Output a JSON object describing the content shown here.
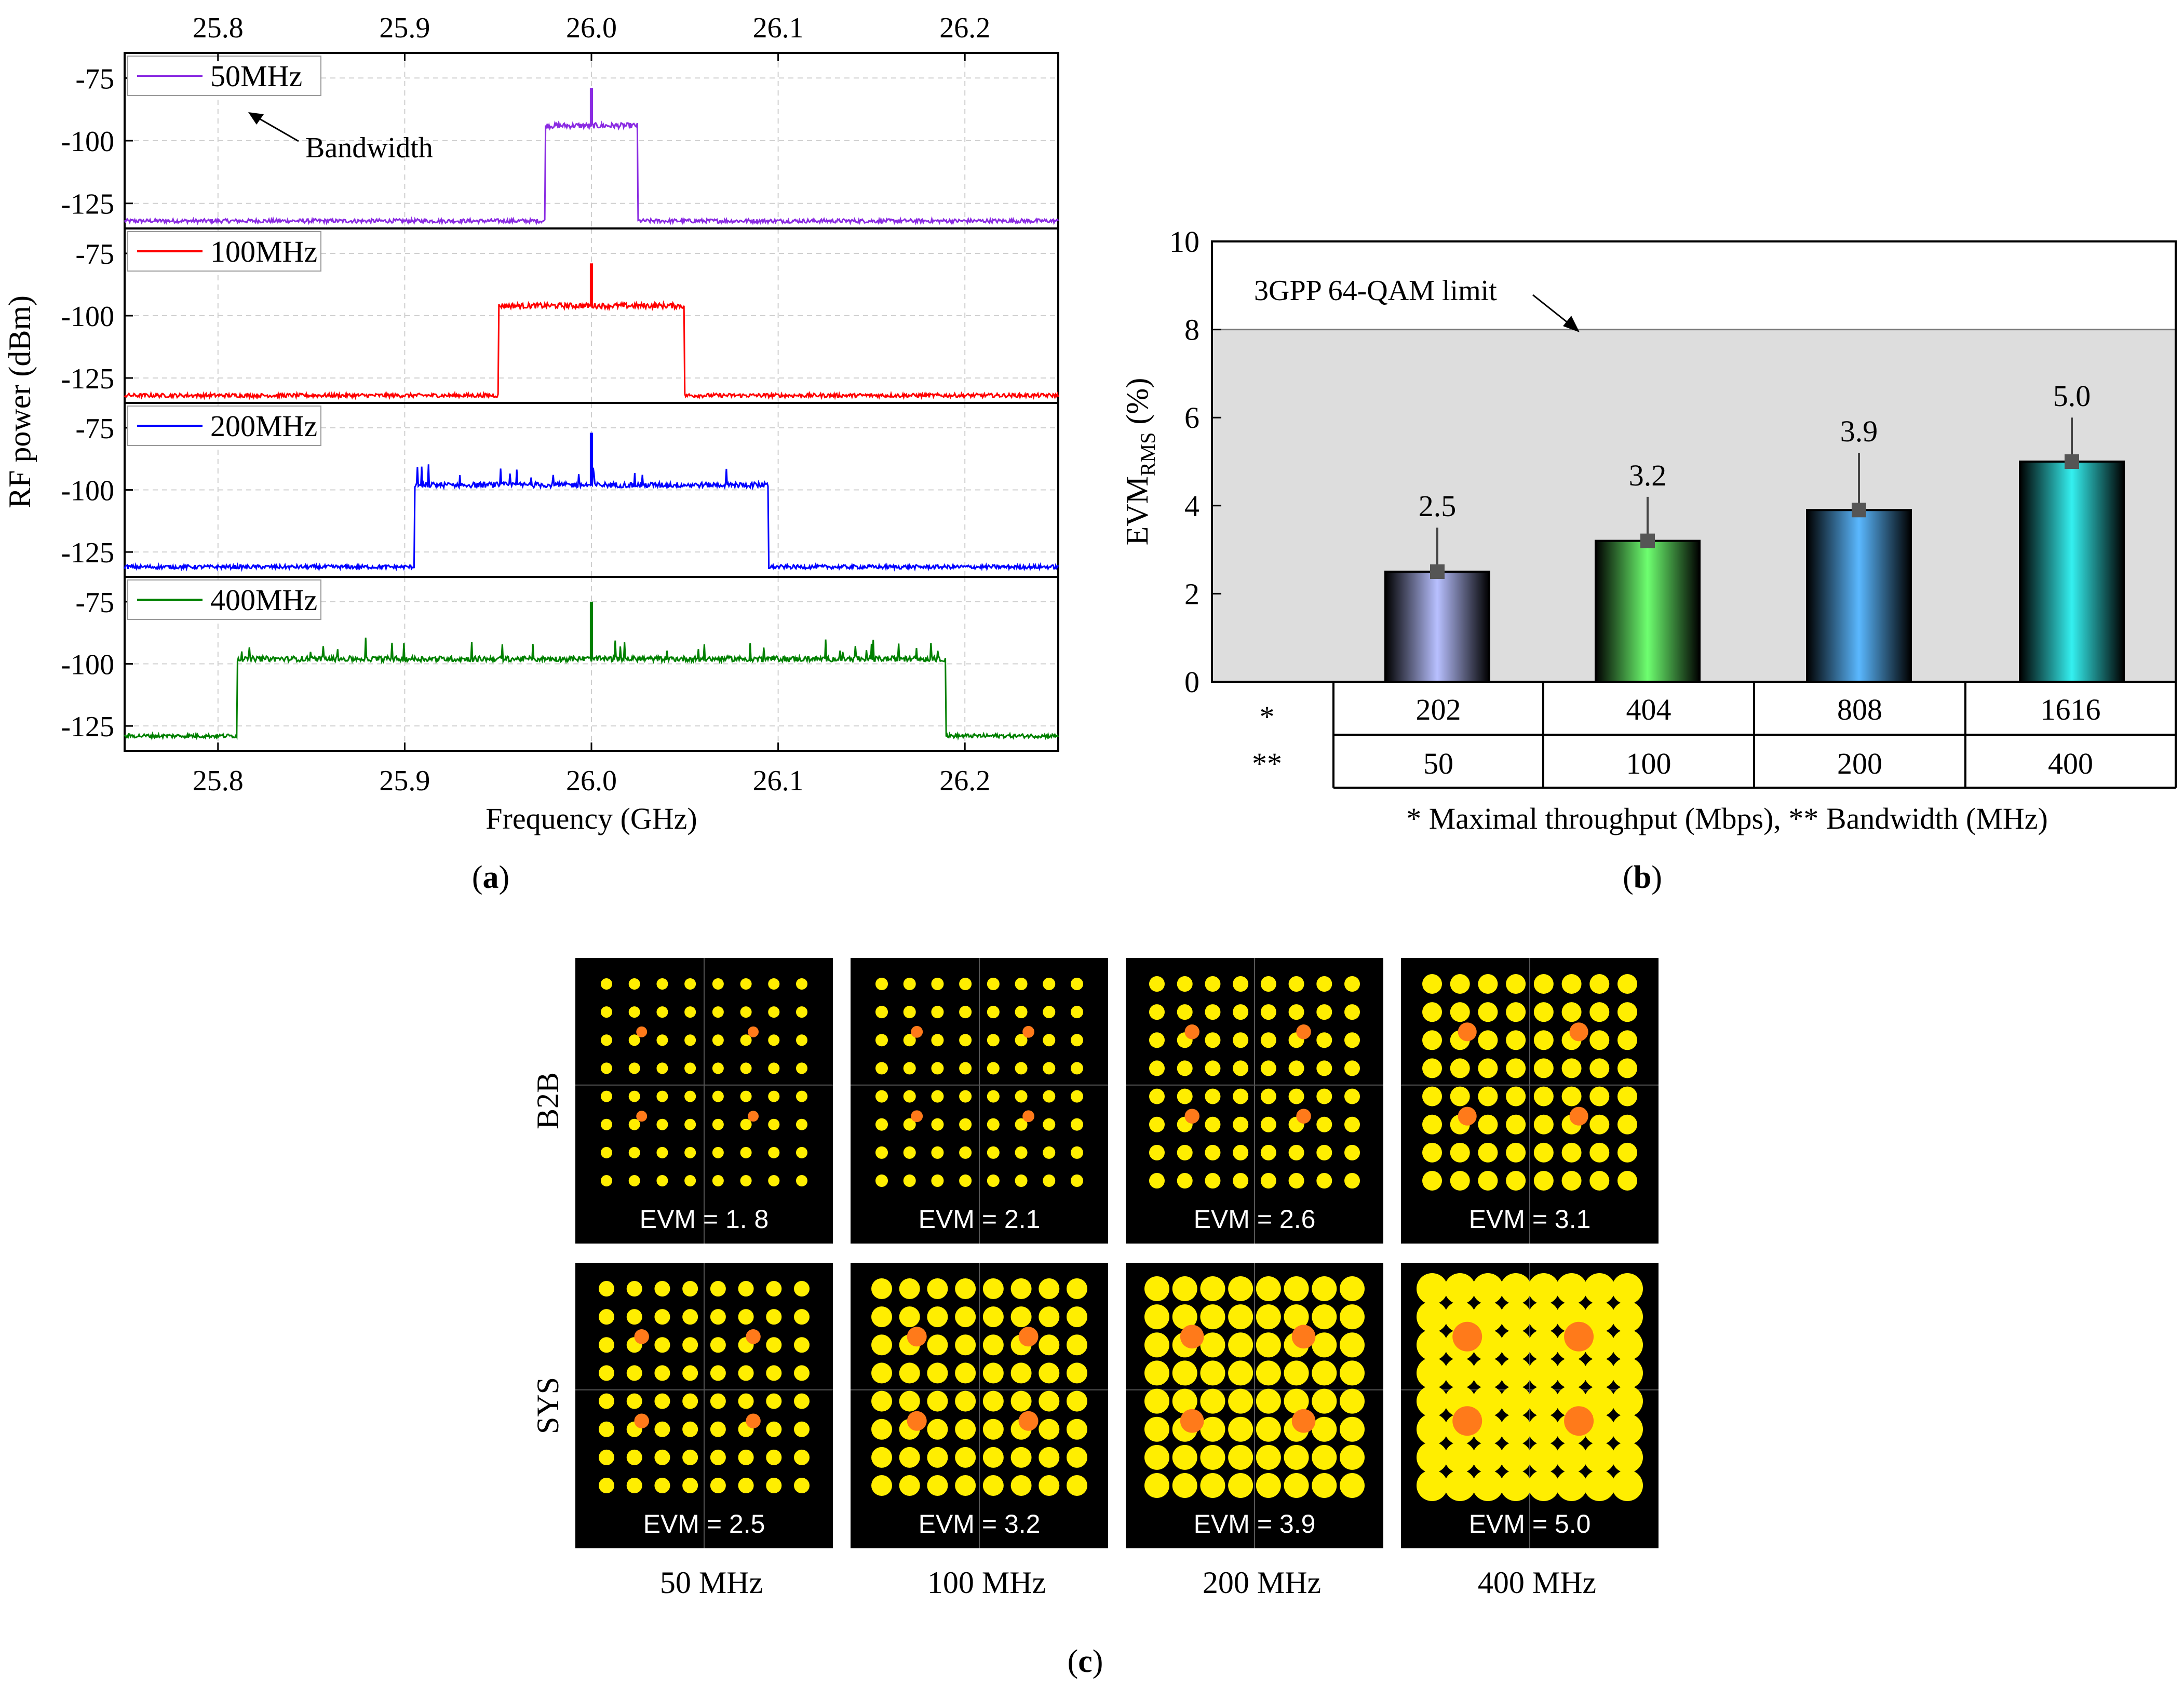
{
  "colors": {
    "bw50": "#8a2be2",
    "bw100": "#ff0000",
    "bw200": "#0000ff",
    "bw400": "#008000",
    "shade": "#dddddd",
    "constBg": "#000000",
    "constDot": "#ffee00",
    "constHot": "#ff7a1a"
  },
  "captions": {
    "a_letter": "a",
    "b_letter": "b",
    "c_letter": "c"
  },
  "panel_a": {
    "ylabel": "RF power (dBm)",
    "xlabel": "Frequency (GHz)",
    "annotation": "Bandwidth"
  },
  "panel_b": {
    "ylabel_main": "EVM",
    "ylabel_sub": "RMS",
    "ylabel_unit": " (%)",
    "limit_label": "3GPP 64-QAM limit",
    "row1_marker": "*",
    "row2_marker": "**",
    "footnote": "* Maximal throughput (Mbps), ** Bandwidth (MHz)",
    "throughput": [
      "202",
      "404",
      "808",
      "1616"
    ],
    "bandwidth": [
      "50",
      "100",
      "200",
      "400"
    ]
  },
  "panel_c": {
    "row_labels": [
      "B2B",
      "SYS"
    ],
    "col_labels": [
      "50 MHz",
      "100 MHz",
      "200 MHz",
      "400 MHz"
    ],
    "evm_b2b": [
      "EVM = 1. 8",
      "EVM = 2.1",
      "EVM = 2.6",
      "EVM = 3.1"
    ],
    "evm_sys": [
      "EVM = 2.5",
      "EVM = 3.2",
      "EVM = 3.9",
      "EVM = 5.0"
    ]
  },
  "chart_data": [
    {
      "type": "line",
      "title": "",
      "xlabel": "Frequency (GHz)",
      "ylabel": "RF power (dBm)",
      "xlim": [
        25.75,
        26.25
      ],
      "xticks": [
        "25.8",
        "25.9",
        "26.0",
        "26.1",
        "26.2"
      ],
      "ylim": [
        -135,
        -65
      ],
      "yticks": [
        "-75",
        "-100",
        "-125"
      ],
      "grid": true,
      "legend_position": "top-left",
      "series": [
        {
          "name": "50MHz",
          "center": 26.0,
          "bandwidth_ghz": 0.05,
          "floor_dbm": -132,
          "band_dbm": -94,
          "peak_dbm": -79
        },
        {
          "name": "100MHz",
          "center": 26.0,
          "bandwidth_ghz": 0.1,
          "floor_dbm": -132,
          "band_dbm": -96,
          "peak_dbm": -79
        },
        {
          "name": "200MHz",
          "center": 26.0,
          "bandwidth_ghz": 0.19,
          "floor_dbm": -131,
          "band_dbm": -98,
          "peak_dbm": -77
        },
        {
          "name": "400MHz",
          "center": 26.0,
          "bandwidth_ghz": 0.38,
          "floor_dbm": -129,
          "band_dbm": -98,
          "peak_dbm": -75
        }
      ]
    },
    {
      "type": "bar",
      "title": "",
      "xlabel": "* Maximal throughput (Mbps), ** Bandwidth (MHz)",
      "ylabel": "EVM RMS (%)",
      "ylim": [
        0,
        10
      ],
      "yticks": [
        "0",
        "2",
        "4",
        "6",
        "8",
        "10"
      ],
      "categories": [
        "50",
        "100",
        "200",
        "400"
      ],
      "values": [
        2.5,
        3.2,
        3.9,
        5.0
      ],
      "value_labels": [
        "2.5",
        "3.2",
        "3.9",
        "5.0"
      ],
      "error_upper": [
        1.0,
        1.0,
        1.3,
        1.0
      ],
      "limit": 8
    }
  ]
}
